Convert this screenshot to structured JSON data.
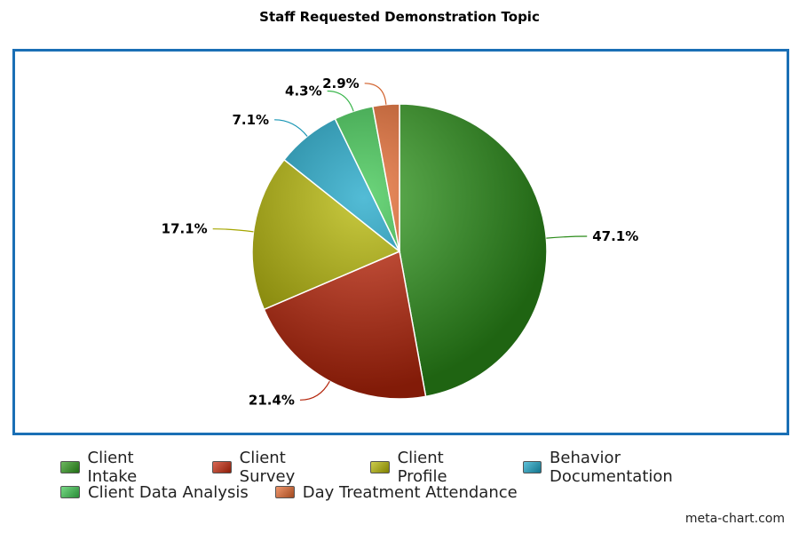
{
  "chart_data": {
    "type": "pie",
    "title": "Staff Requested Demonstration Topic",
    "categories": [
      "Client Intake",
      "Client Survey",
      "Client Profile",
      "Behavior Documentation",
      "Client Data Analysis",
      "Day Treatment Attendance"
    ],
    "values": [
      47.1,
      21.4,
      17.1,
      7.1,
      4.3,
      2.9
    ],
    "data_labels": [
      "47.1%",
      "21.4%",
      "17.1%",
      "7.1%",
      "4.3%",
      "2.9%"
    ],
    "colors": [
      "#2f9a1c",
      "#c8290c",
      "#b7b800",
      "#1aa6c8",
      "#3cc850",
      "#e86a2e"
    ],
    "legend_position": "bottom"
  },
  "watermark": "meta-chart.com"
}
